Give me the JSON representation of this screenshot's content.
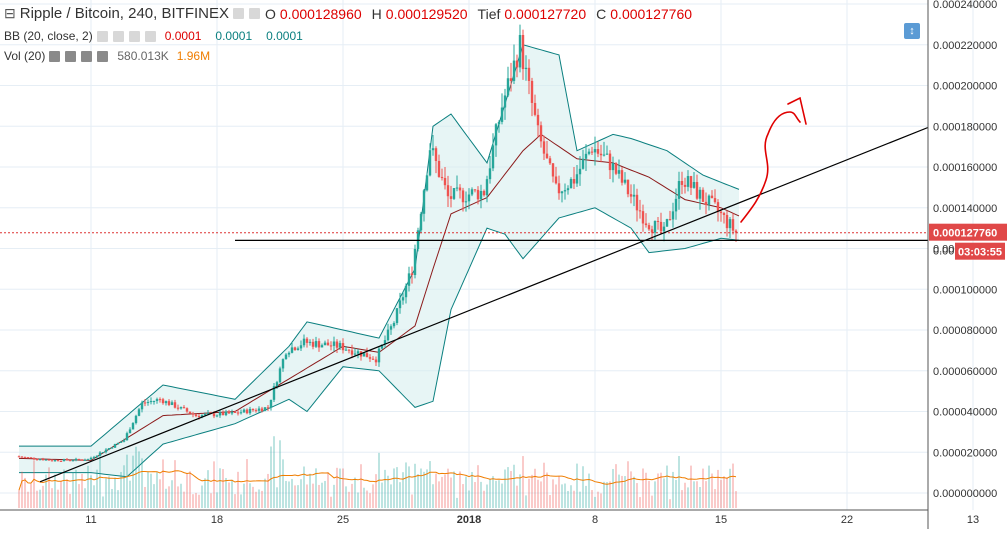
{
  "legend": {
    "pair": "Ripple / Bitcoin, 240, BITFINEX",
    "open_label": "O",
    "open_value": "0.000128960",
    "high_label": "H",
    "high_value": "0.000129520",
    "low_label": "Tief",
    "low_value": "0.000127720",
    "close_label": "C",
    "close_value": "0.000127760",
    "bb_label": "BB (20, close, 2)",
    "bb_values": [
      "0.0001",
      "0.0001",
      "0.0001"
    ],
    "vol_label": "Vol (20)",
    "vol_values": [
      "580.013K",
      "1.96M"
    ]
  },
  "price_badge": {
    "value": "0.000127760",
    "countdown": "03:03:55",
    "partial_tick": "0.00"
  },
  "colors": {
    "up": "#26a69a",
    "down": "#ef5350",
    "bb_band": "#0a7f7f",
    "bb_basis": "#8b1a1a",
    "vol_ma": "#ef7d00",
    "annotation": "#e00000",
    "trendline": "#000000"
  },
  "chart_data": {
    "type": "candlestick",
    "symbol": "Ripple / Bitcoin",
    "interval": "240",
    "exchange": "BITFINEX",
    "x_ticks": [
      "11",
      "18",
      "25",
      "2018",
      "8",
      "15",
      "22",
      "13"
    ],
    "y_ticks": [
      "0.000240000",
      "0.000220000",
      "0.000200000",
      "0.000180000",
      "0.000160000",
      "0.000140000",
      "0.000120000",
      "0.000100000",
      "0.000080000",
      "0.000060000",
      "0.000040000",
      "0.000020000",
      "0.000000000"
    ],
    "ylim": [
      0.0,
      0.00024
    ],
    "grid": true,
    "close_series": [
      [
        "Dec 7",
        1.8e-05
      ],
      [
        "Dec 9",
        1.6e-05
      ],
      [
        "Dec 11",
        1.65e-05
      ],
      [
        "Dec 13",
        2.6e-05
      ],
      [
        "Dec 14",
        4.4e-05
      ],
      [
        "Dec 15",
        4.6e-05
      ],
      [
        "Dec 17",
        3.8e-05
      ],
      [
        "Dec 19",
        3.9e-05
      ],
      [
        "Dec 21",
        4.2e-05
      ],
      [
        "Dec 22",
        7e-05
      ],
      [
        "Dec 23",
        7.4e-05
      ],
      [
        "Dec 25",
        7.2e-05
      ],
      [
        "Dec 27",
        6.6e-05
      ],
      [
        "Dec 28",
        8.4e-05
      ],
      [
        "Dec 29",
        0.00011
      ],
      [
        "Dec 30",
        0.00017
      ],
      [
        "Dec 31",
        0.000145
      ],
      [
        "Jan 2",
        0.000148
      ],
      [
        "Jan 3",
        0.00019
      ],
      [
        "Jan 4",
        0.00022
      ],
      [
        "Jan 5",
        0.000176
      ],
      [
        "Jan 6",
        0.000148
      ],
      [
        "Jan 7",
        0.000154
      ],
      [
        "Jan 8",
        0.00017
      ],
      [
        "Jan 9",
        0.000162
      ],
      [
        "Jan 10",
        0.000148
      ],
      [
        "Jan 11",
        0.000134
      ],
      [
        "Jan 12",
        0.000127
      ],
      [
        "Jan 13",
        0.000155
      ],
      [
        "Jan 14",
        0.000146
      ],
      [
        "Jan 15",
        0.000138
      ],
      [
        "Jan 16",
        0.0001278
      ]
    ],
    "bb_upper": [
      [
        "Dec 7",
        2.3e-05
      ],
      [
        "Dec 11",
        2.3e-05
      ],
      [
        "Dec 15",
        5.3e-05
      ],
      [
        "Dec 19",
        4.6e-05
      ],
      [
        "Dec 22",
        7.2e-05
      ],
      [
        "Dec 23",
        8.4e-05
      ],
      [
        "Dec 27",
        7.6e-05
      ],
      [
        "Dec 29",
        0.00011
      ],
      [
        "Dec 30",
        0.00018
      ],
      [
        "Dec 31",
        0.000186
      ],
      [
        "Jan 2",
        0.000162
      ],
      [
        "Jan 4",
        0.00022
      ],
      [
        "Jan 6",
        0.000215
      ],
      [
        "Jan 7",
        0.000168
      ],
      [
        "Jan 9",
        0.000176
      ],
      [
        "Jan 10",
        0.000174
      ],
      [
        "Jan 12",
        0.000168
      ],
      [
        "Jan 14",
        0.000156
      ],
      [
        "Jan 16",
        0.000149
      ]
    ],
    "bb_lower": [
      [
        "Dec 7",
        1e-05
      ],
      [
        "Dec 11",
        1e-05
      ],
      [
        "Dec 13",
        8e-06
      ],
      [
        "Dec 15",
        2.4e-05
      ],
      [
        "Dec 19",
        3.4e-05
      ],
      [
        "Dec 22",
        4.6e-05
      ],
      [
        "Dec 23",
        4e-05
      ],
      [
        "Dec 25",
        6.2e-05
      ],
      [
        "Dec 27",
        6e-05
      ],
      [
        "Dec 29",
        4.2e-05
      ],
      [
        "Dec 30",
        4.5e-05
      ],
      [
        "Dec 31",
        9e-05
      ],
      [
        "Jan 2",
        0.00013
      ],
      [
        "Jan 3",
        0.000127
      ],
      [
        "Jan 4",
        0.000115
      ],
      [
        "Jan 5",
        0.000125
      ],
      [
        "Jan 6",
        0.000135
      ],
      [
        "Jan 8",
        0.00014
      ],
      [
        "Jan 10",
        0.00013
      ],
      [
        "Jan 11",
        0.000118
      ],
      [
        "Jan 13",
        0.00012
      ],
      [
        "Jan 15",
        0.000125
      ],
      [
        "Jan 16",
        0.000124
      ]
    ],
    "bb_basis": [
      [
        "Dec 7",
        1.7e-05
      ],
      [
        "Dec 11",
        1.6e-05
      ],
      [
        "Dec 15",
        3.8e-05
      ],
      [
        "Dec 19",
        4e-05
      ],
      [
        "Dec 22",
        5.6e-05
      ],
      [
        "Dec 25",
        7.2e-05
      ],
      [
        "Dec 27",
        6.9e-05
      ],
      [
        "Dec 29",
        8.2e-05
      ],
      [
        "Dec 30",
        0.00011
      ],
      [
        "Dec 31",
        0.000137
      ],
      [
        "Jan 2",
        0.000145
      ],
      [
        "Jan 4",
        0.000168
      ],
      [
        "Jan 5",
        0.000176
      ],
      [
        "Jan 7",
        0.000164
      ],
      [
        "Jan 9",
        0.000162
      ],
      [
        "Jan 11",
        0.000155
      ],
      [
        "Jan 13",
        0.000144
      ],
      [
        "Jan 15",
        0.00014
      ],
      [
        "Jan 16",
        0.000136
      ]
    ],
    "horizontal_line": 0.000124,
    "reference_line": 0.00012776,
    "trendline": [
      [
        "Dec 11",
        1.55e-05
      ],
      [
        "Jan 21",
        0.00016
      ]
    ]
  }
}
